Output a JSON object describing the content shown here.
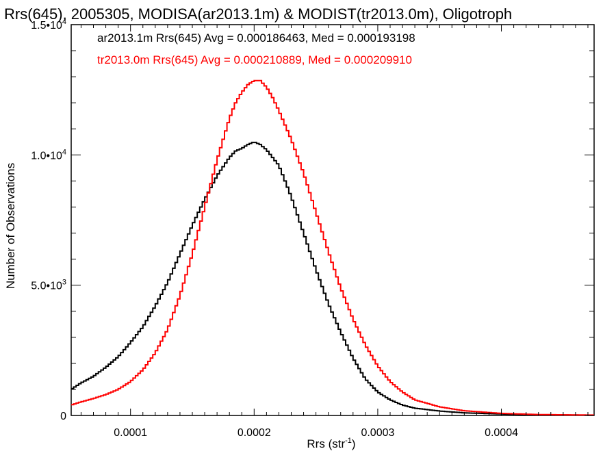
{
  "chart_data": {
    "type": "line",
    "title": "Rrs(645), 2005305, MODISA(ar2013.1m) & MODIST(tr2013.0m), Oligotroph",
    "xlabel_main": "Rrs (str",
    "xlabel_sup": "-1",
    "xlabel_close": ")",
    "ylabel": "Number of Observations",
    "xlim": [
      5.2e-05,
      0.000475
    ],
    "ylim": [
      0,
      15000
    ],
    "x_ticks": [
      {
        "value": 0.0001,
        "label": "0.0001"
      },
      {
        "value": 0.0002,
        "label": "0.0002"
      },
      {
        "value": 0.0003,
        "label": "0.0003"
      },
      {
        "value": 0.0004,
        "label": "0.0004"
      }
    ],
    "y_ticks": [
      {
        "value": 0,
        "label": "0",
        "sup": ""
      },
      {
        "value": 5000,
        "label": "5.0•10",
        "sup": "3"
      },
      {
        "value": 10000,
        "label": "1.0•10",
        "sup": "4"
      },
      {
        "value": 15000,
        "label": "1.5•10",
        "sup": "4"
      }
    ],
    "series": [
      {
        "name": "ar2013.1m",
        "color": "#000000",
        "annotation": "ar2013.1m Rrs(645) Avg = 0.000186463, Med = 0.000193198",
        "x": [
          5.2e-05,
          6e-05,
          7e-05,
          8e-05,
          9e-05,
          0.0001,
          0.00011,
          0.00012,
          0.00013,
          0.00014,
          0.00015,
          0.00016,
          0.00017,
          0.00018,
          0.000185,
          0.00019,
          0.000195,
          0.0002,
          0.000205,
          0.00021,
          0.000215,
          0.00022,
          0.00023,
          0.00024,
          0.00025,
          0.00026,
          0.00027,
          0.00028,
          0.00029,
          0.0003,
          0.00031,
          0.00032,
          0.00033,
          0.00035,
          0.00037,
          0.0004,
          0.00043,
          0.00046,
          0.000475
        ],
        "y": [
          1000,
          1250,
          1500,
          1850,
          2250,
          2800,
          3400,
          4200,
          5100,
          6200,
          7300,
          8300,
          9200,
          9900,
          10150,
          10250,
          10400,
          10500,
          10400,
          10200,
          9900,
          9600,
          8400,
          7000,
          5600,
          4300,
          3200,
          2200,
          1400,
          900,
          600,
          400,
          280,
          170,
          100,
          55,
          25,
          15,
          10
        ]
      },
      {
        "name": "tr2013.0m",
        "color": "#ff0000",
        "annotation": "tr2013.0m Rrs(645) Avg = 0.000210889, Med = 0.000209910",
        "x": [
          5.2e-05,
          6e-05,
          7e-05,
          8e-05,
          9e-05,
          0.0001,
          0.00011,
          0.00012,
          0.00013,
          0.00014,
          0.00015,
          0.00016,
          0.00017,
          0.00018,
          0.000185,
          0.00019,
          0.000195,
          0.0002,
          0.000205,
          0.00021,
          0.000215,
          0.00022,
          0.00023,
          0.00024,
          0.00025,
          0.00026,
          0.00027,
          0.00028,
          0.00029,
          0.0003,
          0.00031,
          0.00032,
          0.00033,
          0.00035,
          0.00037,
          0.0004,
          0.00043,
          0.00046,
          0.000475
        ],
        "y": [
          400,
          520,
          650,
          800,
          1000,
          1300,
          1750,
          2400,
          3300,
          4600,
          6200,
          8000,
          9800,
          11400,
          12000,
          12400,
          12700,
          12850,
          12850,
          12600,
          12200,
          11700,
          10600,
          9300,
          7800,
          6300,
          4900,
          3700,
          2700,
          1900,
          1300,
          900,
          600,
          330,
          180,
          80,
          35,
          20,
          15
        ]
      }
    ]
  }
}
